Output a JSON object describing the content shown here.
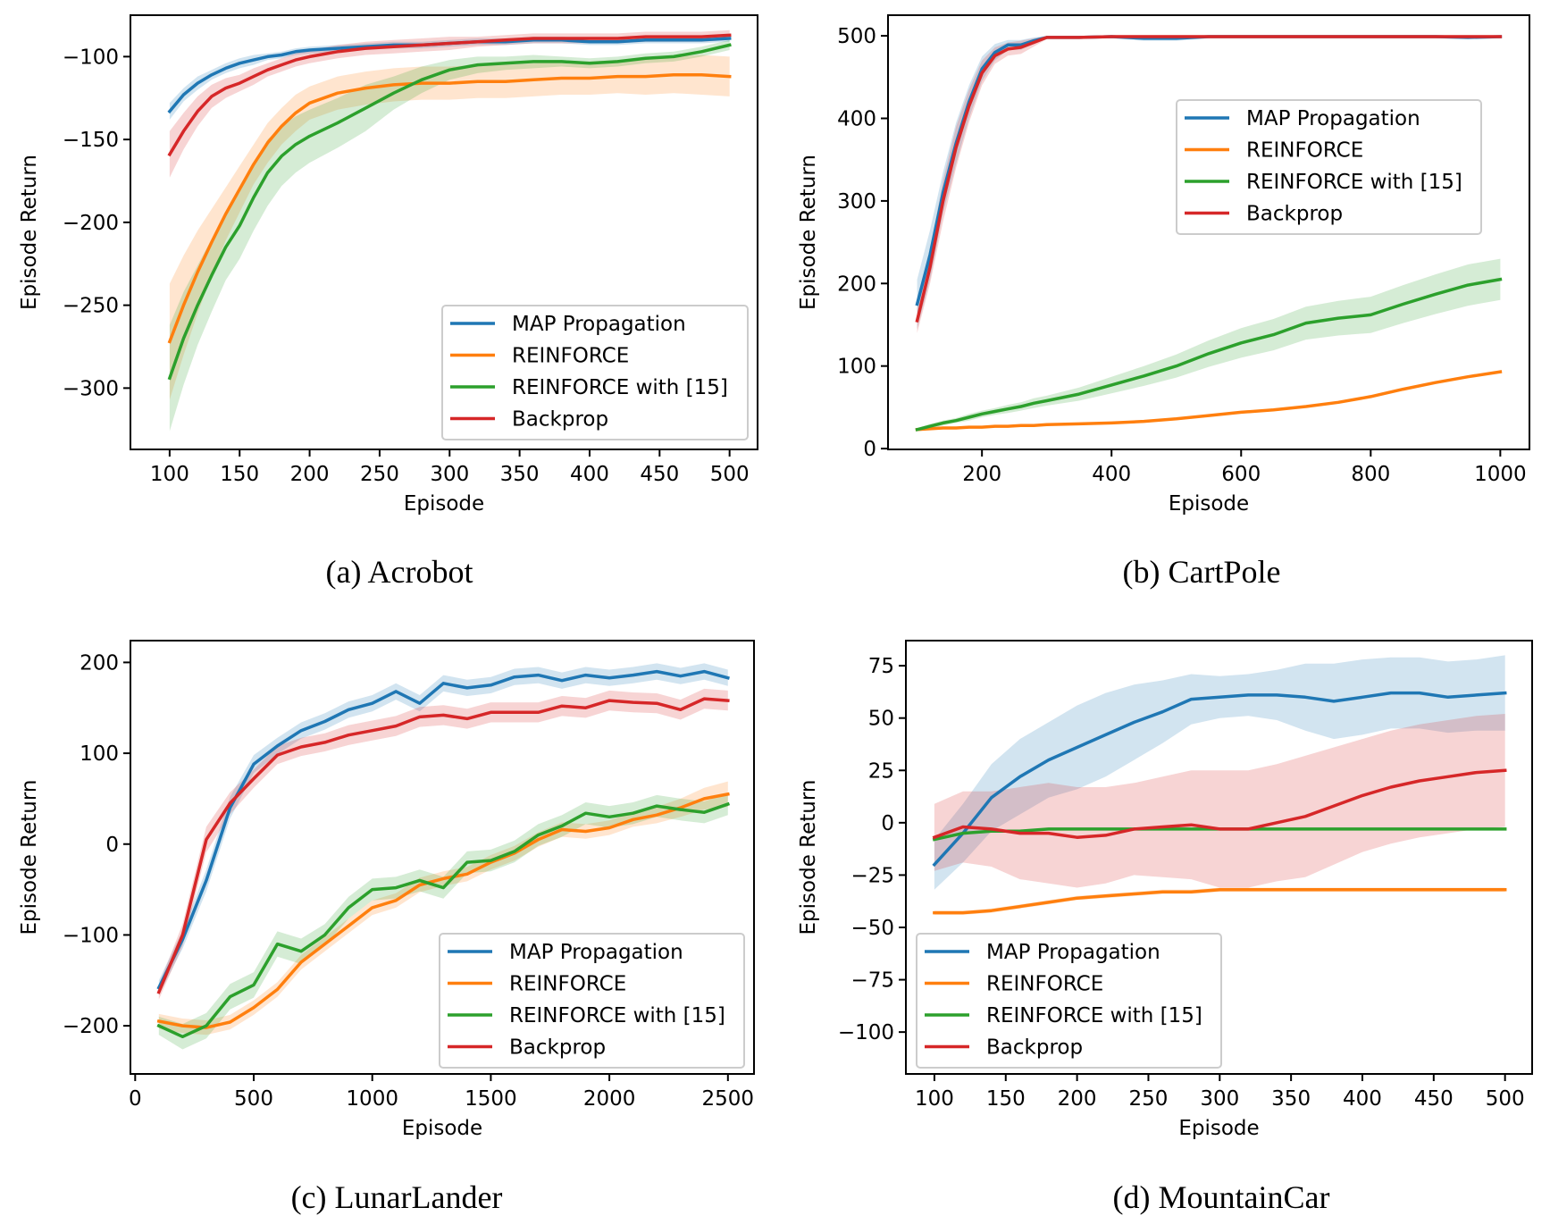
{
  "colors": {
    "MAP Propagation": "#1f77b4",
    "REINFORCE": "#ff7f0e",
    "REINFORCE with [15]": "#2ca02c",
    "Backprop": "#d62728"
  },
  "chart_data": [
    {
      "id": "a",
      "type": "line",
      "caption": "(a) Acrobot",
      "title": "",
      "xlabel": "Episode",
      "ylabel": "Episode Return",
      "xlim": [
        72,
        520
      ],
      "ylim": [
        -337,
        -75
      ],
      "xticks": [
        100,
        150,
        200,
        250,
        300,
        350,
        400,
        450,
        500
      ],
      "yticks": [
        -300,
        -250,
        -200,
        -150,
        -100
      ],
      "ytick_labels": [
        "−300",
        "−250",
        "−200",
        "−150",
        "−100"
      ],
      "grid": false,
      "legend_position": "lower-right",
      "legend": [
        "MAP Propagation",
        "REINFORCE",
        "REINFORCE with [15]",
        "Backprop"
      ],
      "x": [
        100,
        110,
        120,
        130,
        140,
        150,
        160,
        170,
        180,
        190,
        200,
        220,
        240,
        260,
        280,
        300,
        320,
        340,
        360,
        380,
        400,
        420,
        440,
        460,
        480,
        500
      ],
      "series": [
        {
          "name": "MAP Propagation",
          "values": [
            -133,
            -123,
            -116,
            -111,
            -107,
            -104,
            -102,
            -100,
            -99,
            -97,
            -96,
            -95,
            -94,
            -93,
            -93,
            -92,
            -91,
            -91,
            -90,
            -90,
            -91,
            -91,
            -90,
            -90,
            -90,
            -89
          ],
          "band": [
            5,
            4,
            4,
            3,
            3,
            3,
            3,
            2,
            2,
            2,
            2,
            2,
            2,
            2,
            2,
            2,
            2,
            2,
            2,
            2,
            2,
            2,
            2,
            2,
            2,
            2
          ]
        },
        {
          "name": "REINFORCE",
          "values": [
            -272,
            -250,
            -230,
            -212,
            -195,
            -180,
            -165,
            -152,
            -142,
            -134,
            -128,
            -122,
            -119,
            -117,
            -116,
            -116,
            -115,
            -115,
            -114,
            -113,
            -113,
            -112,
            -112,
            -111,
            -111,
            -112
          ],
          "band": [
            35,
            30,
            25,
            20,
            16,
            14,
            12,
            12,
            11,
            11,
            10,
            10,
            10,
            10,
            10,
            10,
            10,
            10,
            10,
            10,
            10,
            10,
            11,
            11,
            12,
            12
          ]
        },
        {
          "name": "REINFORCE with [15]",
          "values": [
            -294,
            -270,
            -250,
            -232,
            -215,
            -202,
            -185,
            -170,
            -160,
            -153,
            -148,
            -140,
            -131,
            -122,
            -114,
            -108,
            -105,
            -104,
            -103,
            -103,
            -104,
            -103,
            -101,
            -100,
            -97,
            -93
          ],
          "band": [
            32,
            28,
            24,
            22,
            20,
            20,
            20,
            20,
            18,
            17,
            16,
            15,
            14,
            10,
            8,
            6,
            5,
            4,
            4,
            3,
            3,
            3,
            3,
            3,
            3,
            3
          ]
        },
        {
          "name": "Backprop",
          "values": [
            -159,
            -145,
            -133,
            -124,
            -119,
            -116,
            -112,
            -108,
            -105,
            -102,
            -100,
            -97,
            -95,
            -94,
            -93,
            -92,
            -91,
            -90,
            -89,
            -89,
            -89,
            -89,
            -88,
            -88,
            -88,
            -87
          ],
          "band": [
            14,
            11,
            9,
            7,
            6,
            5,
            5,
            4,
            4,
            4,
            4,
            4,
            4,
            4,
            4,
            4,
            3,
            3,
            3,
            3,
            3,
            3,
            3,
            3,
            3,
            3
          ]
        }
      ]
    },
    {
      "id": "b",
      "type": "line",
      "caption": "(b) CartPole",
      "title": "",
      "xlabel": "Episode",
      "ylabel": "Episode Return",
      "xlim": [
        55,
        1045
      ],
      "ylim": [
        -1,
        525
      ],
      "xticks": [
        200,
        400,
        600,
        800,
        1000
      ],
      "yticks": [
        0,
        100,
        200,
        300,
        400,
        500
      ],
      "ytick_labels": [
        "0",
        "100",
        "200",
        "300",
        "400",
        "500"
      ],
      "grid": false,
      "legend_position": "upper-right",
      "legend": [
        "MAP Propagation",
        "REINFORCE",
        "REINFORCE with [15]",
        "Backprop"
      ],
      "x": [
        100,
        120,
        140,
        160,
        180,
        200,
        220,
        240,
        260,
        280,
        300,
        350,
        400,
        450,
        500,
        550,
        600,
        650,
        700,
        750,
        800,
        850,
        900,
        950,
        1000
      ],
      "series": [
        {
          "name": "MAP Propagation",
          "values": [
            175,
            235,
            310,
            370,
            420,
            460,
            480,
            489,
            489,
            494,
            498,
            498,
            499,
            497,
            497,
            499,
            499,
            499,
            499,
            499,
            499,
            499,
            499,
            498,
            499
          ],
          "band": [
            30,
            30,
            25,
            25,
            20,
            15,
            10,
            6,
            6,
            4,
            2,
            2,
            2,
            3,
            3,
            2,
            2,
            2,
            2,
            2,
            2,
            2,
            2,
            2,
            2
          ]
        },
        {
          "name": "REINFORCE",
          "values": [
            23,
            24,
            25,
            25,
            26,
            26,
            27,
            27,
            28,
            28,
            29,
            30,
            31,
            33,
            36,
            40,
            44,
            47,
            51,
            56,
            63,
            72,
            80,
            87,
            93
          ]
        },
        {
          "name": "REINFORCE with [15]",
          "values": [
            23,
            27,
            31,
            34,
            38,
            42,
            45,
            48,
            51,
            55,
            58,
            66,
            77,
            88,
            100,
            115,
            128,
            138,
            152,
            158,
            162,
            175,
            187,
            198,
            205
          ],
          "band": [
            2,
            3,
            3,
            3,
            4,
            4,
            4,
            5,
            5,
            6,
            6,
            8,
            10,
            12,
            14,
            16,
            18,
            19,
            20,
            21,
            22,
            23,
            24,
            25,
            25
          ]
        },
        {
          "name": "Backprop",
          "values": [
            155,
            220,
            300,
            365,
            415,
            455,
            476,
            484,
            486,
            492,
            498,
            498,
            499,
            499,
            499,
            499,
            499,
            499,
            499,
            499,
            499,
            499,
            499,
            499,
            499
          ],
          "band": [
            15,
            20,
            25,
            25,
            20,
            15,
            10,
            8,
            8,
            5,
            2,
            2,
            2,
            2,
            2,
            2,
            2,
            2,
            2,
            2,
            2,
            2,
            2,
            2,
            2
          ]
        }
      ]
    },
    {
      "id": "c",
      "type": "line",
      "caption": "(c) LunarLander",
      "title": "",
      "xlabel": "Episode",
      "ylabel": "Episode Return",
      "xlim": [
        -20,
        2610
      ],
      "ylim": [
        -253,
        224
      ],
      "xticks": [
        0,
        500,
        1000,
        1500,
        2000,
        2500
      ],
      "yticks": [
        -200,
        -100,
        0,
        100,
        200
      ],
      "ytick_labels": [
        "−200",
        "−100",
        "0",
        "100",
        "200"
      ],
      "grid": false,
      "legend_position": "lower-right",
      "legend": [
        "MAP Propagation",
        "REINFORCE",
        "REINFORCE with [15]",
        "Backprop"
      ],
      "x": [
        100,
        200,
        300,
        400,
        500,
        600,
        700,
        800,
        900,
        1000,
        1100,
        1200,
        1300,
        1400,
        1500,
        1600,
        1700,
        1800,
        1900,
        2000,
        2100,
        2200,
        2300,
        2400,
        2500
      ],
      "series": [
        {
          "name": "MAP Propagation",
          "values": [
            -158,
            -105,
            -40,
            40,
            88,
            108,
            125,
            135,
            148,
            155,
            168,
            155,
            177,
            172,
            175,
            184,
            186,
            180,
            186,
            183,
            186,
            190,
            185,
            190,
            183
          ],
          "band": [
            8,
            10,
            12,
            12,
            10,
            9,
            9,
            9,
            9,
            9,
            9,
            9,
            9,
            9,
            9,
            9,
            9,
            9,
            9,
            9,
            9,
            9,
            9,
            9,
            9
          ]
        },
        {
          "name": "REINFORCE",
          "values": [
            -195,
            -200,
            -202,
            -196,
            -180,
            -160,
            -130,
            -110,
            -90,
            -70,
            -62,
            -45,
            -38,
            -33,
            -20,
            -10,
            5,
            16,
            14,
            18,
            27,
            32,
            40,
            50,
            55
          ],
          "band": [
            8,
            8,
            8,
            8,
            8,
            8,
            8,
            8,
            8,
            8,
            8,
            8,
            8,
            8,
            8,
            8,
            8,
            8,
            8,
            8,
            8,
            9,
            10,
            12,
            14
          ]
        },
        {
          "name": "REINFORCE with [15]",
          "values": [
            -200,
            -212,
            -200,
            -168,
            -155,
            -110,
            -118,
            -100,
            -70,
            -50,
            -48,
            -40,
            -48,
            -20,
            -18,
            -8,
            10,
            20,
            34,
            30,
            34,
            42,
            38,
            35,
            44
          ],
          "band": [
            10,
            14,
            14,
            14,
            14,
            14,
            14,
            12,
            12,
            12,
            12,
            12,
            12,
            12,
            12,
            12,
            12,
            12,
            12,
            12,
            12,
            12,
            12,
            12,
            12
          ]
        },
        {
          "name": "Backprop",
          "values": [
            -163,
            -100,
            5,
            45,
            72,
            98,
            107,
            112,
            120,
            125,
            130,
            140,
            142,
            138,
            145,
            145,
            145,
            152,
            150,
            158,
            156,
            155,
            148,
            160,
            158
          ],
          "band": [
            8,
            12,
            14,
            12,
            10,
            10,
            10,
            10,
            11,
            11,
            11,
            11,
            11,
            11,
            11,
            11,
            11,
            11,
            11,
            11,
            11,
            11,
            11,
            11,
            11
          ]
        }
      ]
    },
    {
      "id": "d",
      "type": "line",
      "caption": "(d) MountainCar",
      "title": "",
      "xlabel": "Episode",
      "ylabel": "Episode Return",
      "xlim": [
        80,
        519
      ],
      "ylim": [
        -120,
        87
      ],
      "xticks": [
        100,
        150,
        200,
        250,
        300,
        350,
        400,
        450,
        500
      ],
      "yticks": [
        -100,
        -75,
        -50,
        -25,
        0,
        25,
        50,
        75
      ],
      "ytick_labels": [
        "−100",
        "−75",
        "−50",
        "−25",
        "0",
        "25",
        "50",
        "75"
      ],
      "grid": false,
      "legend_position": "lower-left",
      "legend": [
        "MAP Propagation",
        "REINFORCE",
        "REINFORCE with [15]",
        "Backprop"
      ],
      "x": [
        100,
        120,
        140,
        160,
        180,
        200,
        220,
        240,
        260,
        280,
        300,
        320,
        340,
        360,
        380,
        400,
        420,
        440,
        460,
        480,
        500
      ],
      "series": [
        {
          "name": "MAP Propagation",
          "values": [
            -20,
            -5,
            12,
            22,
            30,
            36,
            42,
            48,
            53,
            59,
            60,
            61,
            61,
            60,
            58,
            60,
            62,
            62,
            60,
            61,
            62
          ],
          "band": [
            12,
            14,
            16,
            18,
            18,
            20,
            20,
            18,
            15,
            12,
            10,
            10,
            12,
            16,
            18,
            18,
            17,
            17,
            17,
            17,
            18
          ]
        },
        {
          "name": "REINFORCE",
          "values": [
            -43,
            -43,
            -42,
            -40,
            -38,
            -36,
            -35,
            -34,
            -33,
            -33,
            -32,
            -32,
            -32,
            -32,
            -32,
            -32,
            -32,
            -32,
            -32,
            -32,
            -32
          ],
          "band": [
            1,
            1,
            1,
            1,
            1,
            1,
            1,
            1,
            1,
            1,
            1,
            1,
            1,
            1,
            1,
            1,
            1,
            1,
            1,
            1,
            1
          ]
        },
        {
          "name": "REINFORCE with [15]",
          "values": [
            -8,
            -5,
            -4,
            -4,
            -3,
            -3,
            -3,
            -3,
            -3,
            -3,
            -3,
            -3,
            -3,
            -3,
            -3,
            -3,
            -3,
            -3,
            -3,
            -3,
            -3
          ],
          "band": [
            0.5,
            0.5,
            0.5,
            0.5,
            0.5,
            0.5,
            0.5,
            0.5,
            0.5,
            0.5,
            0.5,
            0.5,
            0.5,
            0.5,
            0.5,
            0.5,
            0.5,
            0.5,
            0.5,
            0.5,
            0.5
          ]
        },
        {
          "name": "Backprop",
          "values": [
            -7,
            -2,
            -3,
            -5,
            -5,
            -7,
            -6,
            -3,
            -2,
            -1,
            -3,
            -3,
            0,
            3,
            8,
            13,
            17,
            20,
            22,
            24,
            25
          ],
          "band": [
            16,
            17,
            18,
            22,
            24,
            24,
            23,
            22,
            24,
            26,
            28,
            28,
            28,
            29,
            28,
            27,
            27,
            27,
            27,
            27,
            27
          ]
        }
      ]
    }
  ]
}
